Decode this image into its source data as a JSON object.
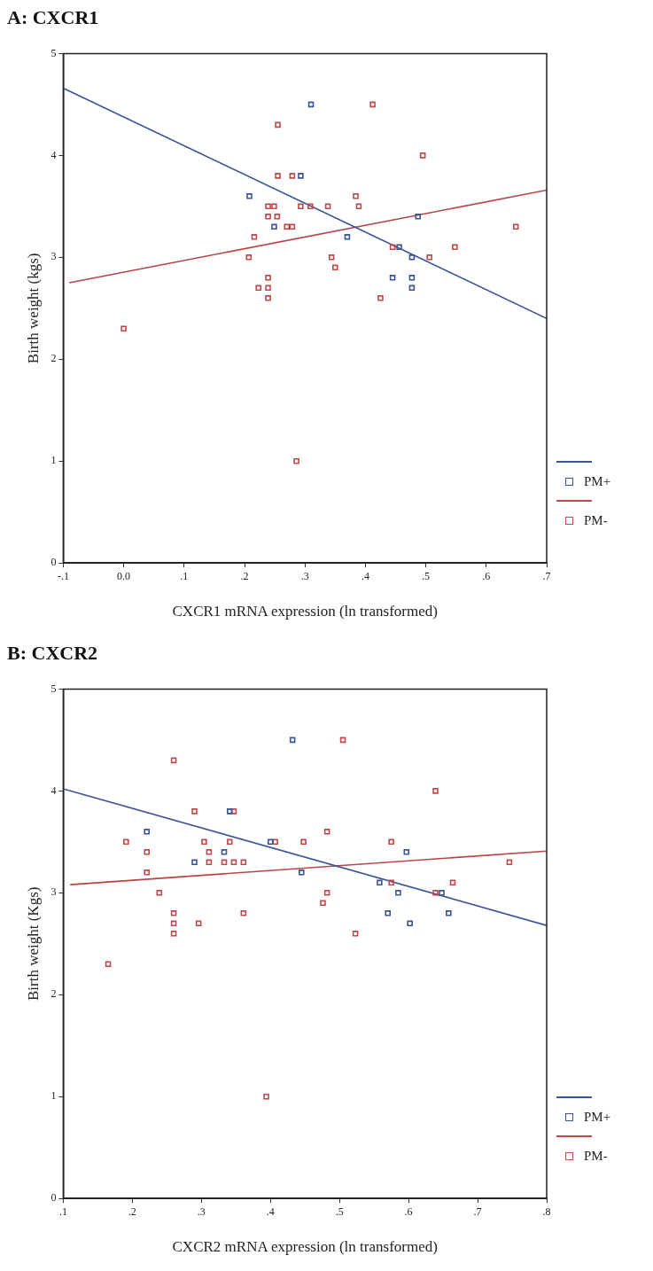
{
  "chart_data": [
    {
      "type": "scatter",
      "title": "A: CXCR1",
      "xlabel": "CXCR1 mRNA expression (ln transformed)",
      "ylabel": "Birth weight (kgs)",
      "grid": false,
      "legend": "bottom right",
      "xlim": [
        -0.1,
        0.7
      ],
      "ylim": [
        0,
        5
      ],
      "xticks": [
        {
          "value": -0.1,
          "label": "-.1"
        },
        {
          "value": 0,
          "label": "0.0"
        },
        {
          "value": 0.1,
          "label": ".1"
        },
        {
          "value": 0.2,
          "label": ".2"
        },
        {
          "value": 0.3,
          "label": ".3"
        },
        {
          "value": 0.4,
          "label": ".4"
        },
        {
          "value": 0.5,
          "label": ".5"
        },
        {
          "value": 0.6,
          "label": ".6"
        },
        {
          "value": 0.7,
          "label": ".7"
        }
      ],
      "yticks": [
        0,
        1,
        2,
        3,
        4,
        5
      ],
      "series": [
        {
          "name": "PM+",
          "color": "#3a5494",
          "marker": "square",
          "x": [
            0.31,
            0.293,
            0.208,
            0.249,
            0.487,
            0.37,
            0.456,
            0.477,
            0.445,
            0.477,
            0.477
          ],
          "values": [
            4.5,
            3.8,
            3.6,
            3.3,
            3.4,
            3.2,
            3.1,
            3.0,
            2.8,
            2.8,
            2.7
          ]
        },
        {
          "name": "PM-",
          "color": "#c0484a",
          "marker": "square",
          "x": [
            0.0,
            0.255,
            0.255,
            0.279,
            0.293,
            0.309,
            0.338,
            0.239,
            0.249,
            0.239,
            0.254,
            0.27,
            0.279,
            0.216,
            0.207,
            0.344,
            0.35,
            0.239,
            0.223,
            0.239,
            0.239,
            0.286,
            0.412,
            0.495,
            0.384,
            0.389,
            0.649,
            0.445,
            0.548,
            0.506,
            0.425
          ],
          "values": [
            2.3,
            4.3,
            3.8,
            3.8,
            3.5,
            3.5,
            3.5,
            3.5,
            3.5,
            3.4,
            3.4,
            3.3,
            3.3,
            3.2,
            3.0,
            3.0,
            2.9,
            2.8,
            2.7,
            2.7,
            2.6,
            1.0,
            4.5,
            4.0,
            3.6,
            3.5,
            3.3,
            3.1,
            3.1,
            3.0,
            2.6
          ]
        },
        {
          "type": "line",
          "color": "#3a5494",
          "marker": "none",
          "x": [
            -0.1,
            0.7
          ],
          "values": [
            4.66,
            2.4
          ]
        },
        {
          "type": "line",
          "color": "#b84446",
          "marker": "none",
          "x": [
            -0.09,
            0.7
          ],
          "values": [
            2.75,
            3.66
          ]
        }
      ]
    },
    {
      "type": "scatter",
      "title": "B: CXCR2",
      "xlabel": "CXCR2 mRNA expression (ln transformed)",
      "ylabel": "Birth weight (Kgs)",
      "grid": false,
      "legend": "bottom right",
      "xlim": [
        0.1,
        0.8
      ],
      "ylim": [
        0,
        5
      ],
      "xticks": [
        {
          "value": 0.1,
          "label": ".1"
        },
        {
          "value": 0.2,
          "label": ".2"
        },
        {
          "value": 0.3,
          "label": ".3"
        },
        {
          "value": 0.4,
          "label": ".4"
        },
        {
          "value": 0.5,
          "label": ".5"
        },
        {
          "value": 0.6,
          "label": ".6"
        },
        {
          "value": 0.7,
          "label": ".7"
        },
        {
          "value": 0.8,
          "label": ".8"
        }
      ],
      "yticks": [
        0,
        1,
        2,
        3,
        4,
        5
      ],
      "series": [
        {
          "name": "PM+",
          "color": "#3a5494",
          "marker": "square",
          "x": [
            0.432,
            0.221,
            0.341,
            0.29,
            0.333,
            0.4,
            0.445,
            0.597,
            0.558,
            0.585,
            0.648,
            0.57,
            0.658,
            0.602
          ],
          "values": [
            4.5,
            3.6,
            3.8,
            3.3,
            3.4,
            3.5,
            3.2,
            3.4,
            3.1,
            3.0,
            3.0,
            2.8,
            2.8,
            2.7
          ]
        },
        {
          "name": "PM-",
          "color": "#c0484a",
          "marker": "square",
          "x": [
            0.165,
            0.191,
            0.26,
            0.221,
            0.221,
            0.239,
            0.26,
            0.26,
            0.26,
            0.29,
            0.296,
            0.304,
            0.311,
            0.311,
            0.333,
            0.341,
            0.347,
            0.347,
            0.361,
            0.361,
            0.394,
            0.407,
            0.448,
            0.505,
            0.639,
            0.482,
            0.575,
            0.746,
            0.575,
            0.664,
            0.639,
            0.482,
            0.476,
            0.523
          ],
          "values": [
            2.3,
            3.5,
            4.3,
            3.4,
            3.2,
            3.0,
            2.8,
            2.7,
            2.6,
            3.8,
            2.7,
            3.5,
            3.4,
            3.3,
            3.3,
            3.5,
            3.8,
            3.3,
            3.3,
            2.8,
            1.0,
            3.5,
            3.5,
            4.5,
            4.0,
            3.6,
            3.5,
            3.3,
            3.1,
            3.1,
            3.0,
            3.0,
            2.9,
            2.6
          ]
        },
        {
          "type": "line",
          "color": "#3a5494",
          "marker": "none",
          "x": [
            0.1,
            0.8
          ],
          "values": [
            4.02,
            2.68
          ]
        },
        {
          "type": "line",
          "color": "#b84446",
          "marker": "none",
          "x": [
            0.11,
            0.8
          ],
          "values": [
            3.08,
            3.41
          ]
        }
      ]
    }
  ]
}
